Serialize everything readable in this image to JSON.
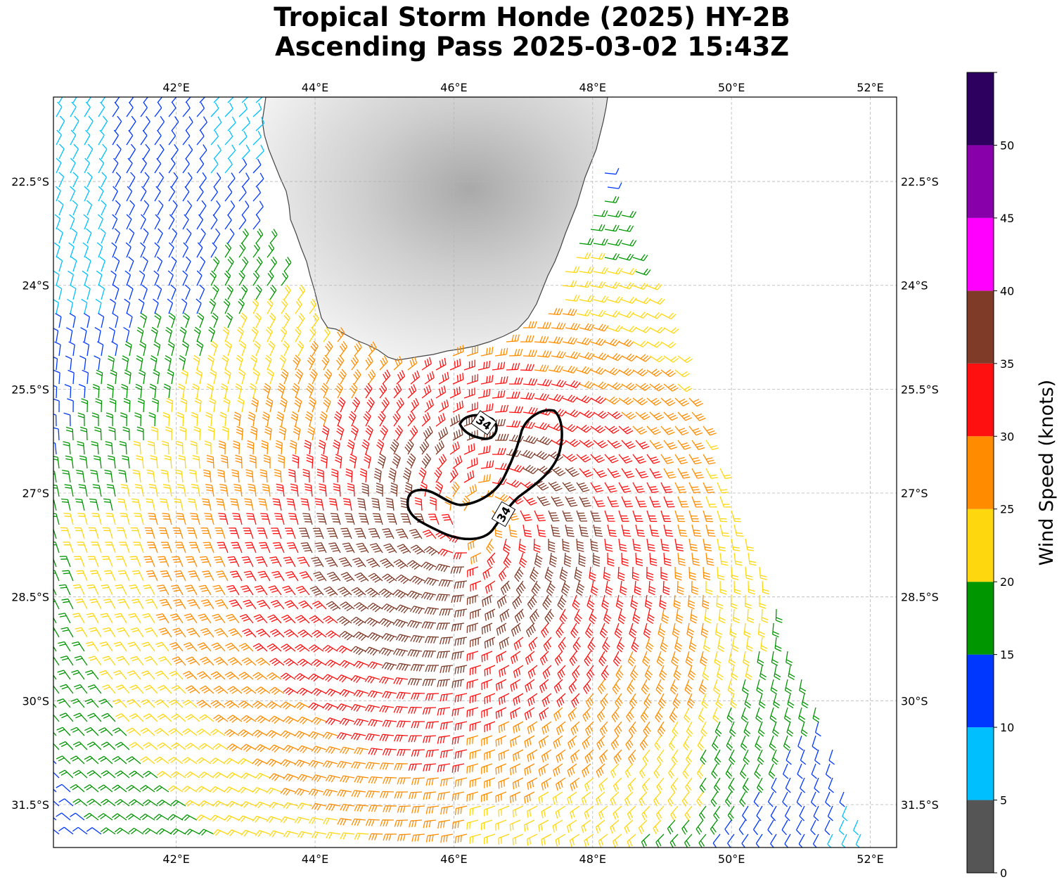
{
  "title": {
    "line1": "Tropical Storm Honde (2025) HY-2B",
    "line2": "Ascending Pass 2025-03-02 15:43Z"
  },
  "map": {
    "lon_range": [
      40.23,
      52.38
    ],
    "lat_range": [
      -32.12,
      -21.28
    ],
    "lon_ticks": [
      {
        "value": 42,
        "label": "42°E"
      },
      {
        "value": 44,
        "label": "44°E"
      },
      {
        "value": 46,
        "label": "46°E"
      },
      {
        "value": 48,
        "label": "48°E"
      },
      {
        "value": 50,
        "label": "50°E"
      },
      {
        "value": 52,
        "label": "52°E"
      }
    ],
    "lat_ticks": [
      {
        "value": -22.5,
        "label": "22.5°S"
      },
      {
        "value": -24,
        "label": "24°S"
      },
      {
        "value": -25.5,
        "label": "25.5°S"
      },
      {
        "value": -27,
        "label": "27°S"
      },
      {
        "value": -28.5,
        "label": "28.5°S"
      },
      {
        "value": -30,
        "label": "30°S"
      },
      {
        "value": -31.5,
        "label": "31.5°S"
      }
    ],
    "storm_center": {
      "lon": 46.3,
      "lat": -27.4
    },
    "land_name": "Madagascar",
    "contour_label": "34",
    "contour_level_kt": 34
  },
  "colorbar": {
    "label": "Wind Speed (knots)",
    "tick_labels": [
      "0",
      "5",
      "10",
      "15",
      "20",
      "25",
      "30",
      "35",
      "40",
      "45",
      "50"
    ],
    "bins": [
      {
        "min": 0,
        "max": 5,
        "color": "#555555"
      },
      {
        "min": 5,
        "max": 10,
        "color": "#00BFFF"
      },
      {
        "min": 10,
        "max": 15,
        "color": "#0037FF"
      },
      {
        "min": 15,
        "max": 20,
        "color": "#009600"
      },
      {
        "min": 20,
        "max": 25,
        "color": "#FFD70F"
      },
      {
        "min": 25,
        "max": 30,
        "color": "#FF8C00"
      },
      {
        "min": 30,
        "max": 35,
        "color": "#FF1010"
      },
      {
        "min": 35,
        "max": 40,
        "color": "#7F3A28"
      },
      {
        "min": 40,
        "max": 45,
        "color": "#FF00FF"
      },
      {
        "min": 45,
        "max": 50,
        "color": "#8800AA"
      },
      {
        "min": 50,
        "max": 55,
        "color": "#2D0060"
      }
    ]
  }
}
